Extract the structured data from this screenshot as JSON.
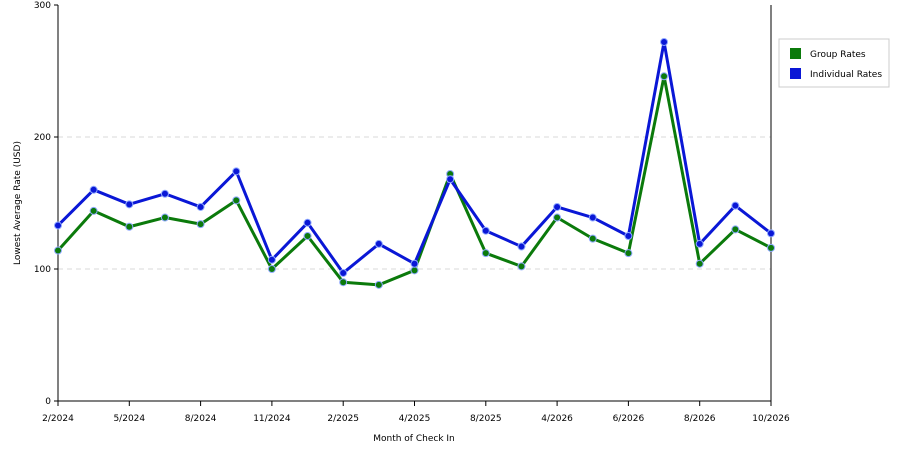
{
  "chart_data": {
    "type": "line",
    "title": "",
    "xlabel": "Month of Check In",
    "ylabel": "Lowest Average Rate (USD)",
    "ylim": [
      0,
      300
    ],
    "yticks": [
      0,
      100,
      200,
      300
    ],
    "grid": "horizontal dashed",
    "legend_position": "top-right",
    "x_tick_labels": [
      "2/2024",
      "5/2024",
      "8/2024",
      "11/2024",
      "2/2025",
      "4/2025",
      "8/2025",
      "4/2026",
      "6/2026",
      "8/2026",
      "10/2026"
    ],
    "x_tick_indices": [
      0,
      2,
      4,
      6,
      8,
      10,
      12,
      14,
      16,
      18,
      20
    ],
    "point_count": 21,
    "series": [
      {
        "name": "Group Rates",
        "color": "#0b7a0b",
        "values": [
          114,
          144,
          132,
          139,
          134,
          152,
          100,
          125,
          90,
          88,
          99,
          172,
          112,
          102,
          139,
          123,
          112,
          246,
          104,
          130,
          116
        ]
      },
      {
        "name": "Individual Rates",
        "color": "#0a17d6",
        "values": [
          133,
          160,
          149,
          157,
          147,
          174,
          107,
          135,
          97,
          119,
          104,
          168,
          129,
          117,
          147,
          139,
          125,
          272,
          119,
          148,
          127
        ]
      }
    ]
  }
}
